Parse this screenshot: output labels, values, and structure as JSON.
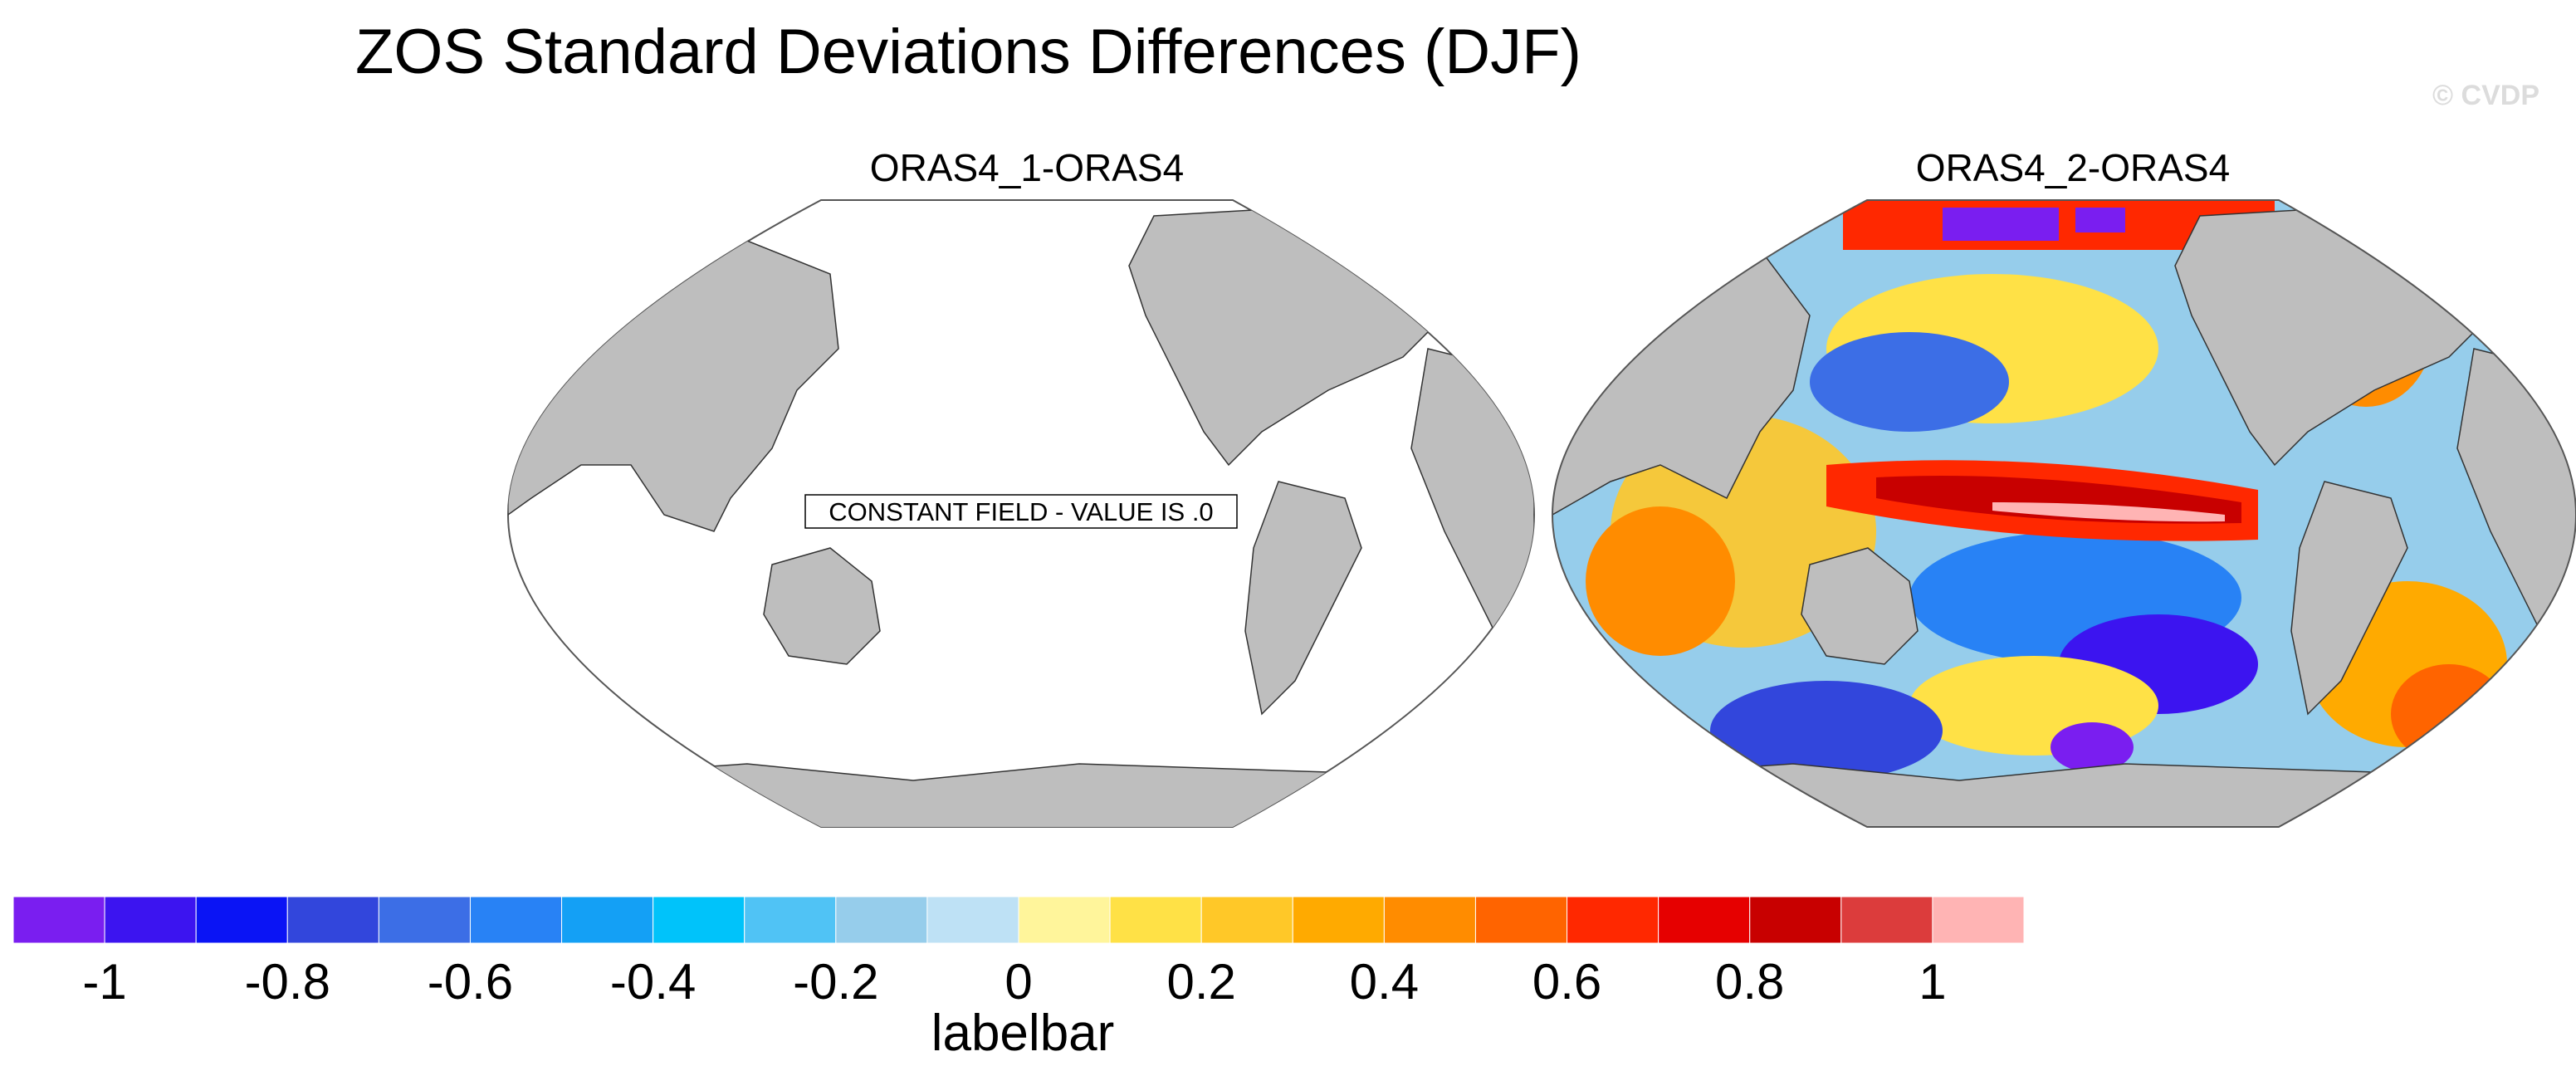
{
  "chart_data": {
    "type": "heatmap",
    "title": "ZOS Standard Deviations Differences (DJF)",
    "credit": "© CVDP",
    "panels": [
      {
        "title": "ORAS4_1-ORAS4",
        "annotation": "CONSTANT FIELD - VALUE IS .0",
        "constant_value": 0.0
      },
      {
        "title": "ORAS4_2-ORAS4",
        "annotation": "",
        "description": "Gridded field, strongest positive values along equatorial Pacific"
      }
    ],
    "colorbar": {
      "title": "labelbar",
      "levels": [
        -1.1,
        -1,
        -0.9,
        -0.8,
        -0.7,
        -0.6,
        -0.5,
        -0.4,
        -0.3,
        -0.2,
        -0.1,
        0,
        0.1,
        0.2,
        0.3,
        0.4,
        0.5,
        0.6,
        0.7,
        0.8,
        0.9,
        1,
        1.1
      ],
      "tick_labels": [
        "-1",
        "-0.8",
        "-0.6",
        "-0.4",
        "-0.2",
        "0",
        "0.2",
        "0.4",
        "0.6",
        "0.8",
        "1"
      ],
      "tick_values": [
        -1,
        -0.8,
        -0.6,
        -0.4,
        -0.2,
        0,
        0.2,
        0.4,
        0.6,
        0.8,
        1
      ],
      "colors": [
        "#7a1ef0",
        "#3c14f0",
        "#0a14f5",
        "#3246dc",
        "#3c6ee6",
        "#2882f5",
        "#14a0f5",
        "#00c3fa",
        "#50c3f5",
        "#96cdeb",
        "#bee1f5",
        "#fff59b",
        "#ffe146",
        "#ffc828",
        "#ffaa00",
        "#ff8c00",
        "#ff6400",
        "#ff2800",
        "#e60000",
        "#c80000",
        "#dc3c3c",
        "#ffb4b4"
      ]
    }
  }
}
